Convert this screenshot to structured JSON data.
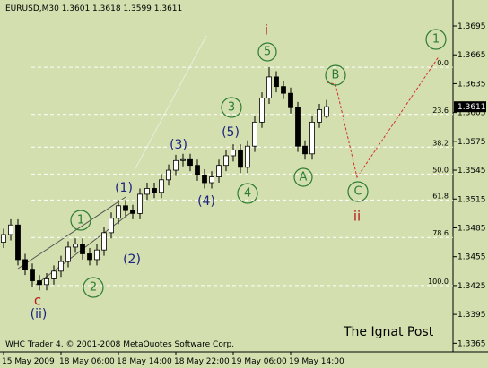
{
  "chart_data": {
    "type": "candlestick",
    "header": "EURUSD,M30  1.3601 1.3618 1.3599 1.3611",
    "footer": "WHC Trader 4, © 2001-2008 MetaQuotes Software Corp.",
    "watermark": "The Ignat Post",
    "up_color": "#ffffff",
    "down_color": "#000000",
    "wick_color": "#000000",
    "ylim": [
      1.3356,
      1.3722
    ],
    "yticks": [
      1.3695,
      1.3665,
      1.3635,
      1.3605,
      1.3575,
      1.3545,
      1.3515,
      1.3485,
      1.3455,
      1.3425,
      1.3395,
      1.3365
    ],
    "xlim": [
      -0.5,
      62.625
    ],
    "xticks": [
      {
        "value": 0,
        "label": "15 May 2009"
      },
      {
        "value": 8,
        "label": "18 May 06:00"
      },
      {
        "value": 16,
        "label": "18 May 14:00"
      },
      {
        "value": 24,
        "label": "18 May 22:00"
      },
      {
        "value": 32,
        "label": "19 May 06:00"
      },
      {
        "value": 40,
        "label": "19 May 14:00"
      }
    ],
    "last_price": {
      "value": 1.3611,
      "label": "1.3611"
    },
    "fib_levels": [
      {
        "value": 1.3652,
        "label": "0.0"
      },
      {
        "value": 1.3603,
        "label": "23.6"
      },
      {
        "value": 1.3569,
        "label": "38.2"
      },
      {
        "value": 1.3541,
        "label": "50.0"
      },
      {
        "value": 1.3514,
        "label": "61.8"
      },
      {
        "value": 1.3475,
        "label": "78.6"
      },
      {
        "value": 1.3425,
        "label": "100.0"
      }
    ],
    "candles": {
      "open": [
        1.347,
        1.3478,
        1.3488,
        1.3452,
        1.3442,
        1.343,
        1.3426,
        1.3432,
        1.344,
        1.345,
        1.3465,
        1.3468,
        1.3458,
        1.3452,
        1.3462,
        1.348,
        1.3495,
        1.3508,
        1.3503,
        1.35,
        1.352,
        1.3526,
        1.3522,
        1.3535,
        1.3545,
        1.3555,
        1.3556,
        1.355,
        1.354,
        1.3532,
        1.3538,
        1.355,
        1.356,
        1.3566,
        1.3548,
        1.357,
        1.3595,
        1.362,
        1.3642,
        1.3632,
        1.3625,
        1.361,
        1.357,
        1.3562,
        1.3595,
        1.3601
      ],
      "high": [
        1.3484,
        1.3494,
        1.3494,
        1.3458,
        1.3448,
        1.3436,
        1.3438,
        1.3446,
        1.3456,
        1.3471,
        1.3474,
        1.3474,
        1.3464,
        1.3468,
        1.3486,
        1.3501,
        1.3514,
        1.3514,
        1.3509,
        1.3526,
        1.3532,
        1.3532,
        1.3541,
        1.3551,
        1.3561,
        1.3562,
        1.3562,
        1.3556,
        1.3546,
        1.3544,
        1.3556,
        1.3566,
        1.3572,
        1.3572,
        1.3576,
        1.3601,
        1.3626,
        1.3652,
        1.3648,
        1.3638,
        1.3631,
        1.3616,
        1.3576,
        1.3601,
        1.3614,
        1.3618
      ],
      "low": [
        1.3464,
        1.3472,
        1.3446,
        1.3436,
        1.3424,
        1.342,
        1.342,
        1.3426,
        1.3434,
        1.3444,
        1.3459,
        1.3452,
        1.3446,
        1.3446,
        1.3456,
        1.3474,
        1.3489,
        1.3497,
        1.3494,
        1.3494,
        1.3514,
        1.3516,
        1.3516,
        1.3529,
        1.3539,
        1.3549,
        1.3544,
        1.3534,
        1.3526,
        1.3526,
        1.3532,
        1.3544,
        1.3554,
        1.3542,
        1.3542,
        1.3564,
        1.3589,
        1.3614,
        1.3626,
        1.3619,
        1.3604,
        1.3564,
        1.3556,
        1.3556,
        1.3589,
        1.3599
      ],
      "close": [
        1.3478,
        1.3488,
        1.3452,
        1.3442,
        1.343,
        1.3426,
        1.3432,
        1.344,
        1.345,
        1.3465,
        1.3468,
        1.3458,
        1.3452,
        1.3462,
        1.348,
        1.3495,
        1.3508,
        1.3503,
        1.35,
        1.352,
        1.3526,
        1.3522,
        1.3535,
        1.3545,
        1.3555,
        1.3556,
        1.355,
        1.354,
        1.3532,
        1.3538,
        1.355,
        1.356,
        1.3566,
        1.3548,
        1.357,
        1.3595,
        1.362,
        1.3642,
        1.3632,
        1.3625,
        1.361,
        1.357,
        1.3562,
        1.3595,
        1.3608,
        1.3611
      ]
    },
    "wave_labels": [
      "i",
      "5",
      "B",
      "1",
      "3",
      "(5)",
      "(3)",
      "(1)",
      "4",
      "(4)",
      "A",
      "C",
      "ii",
      "1",
      "(2)",
      "2",
      "c",
      "(ii)"
    ]
  }
}
